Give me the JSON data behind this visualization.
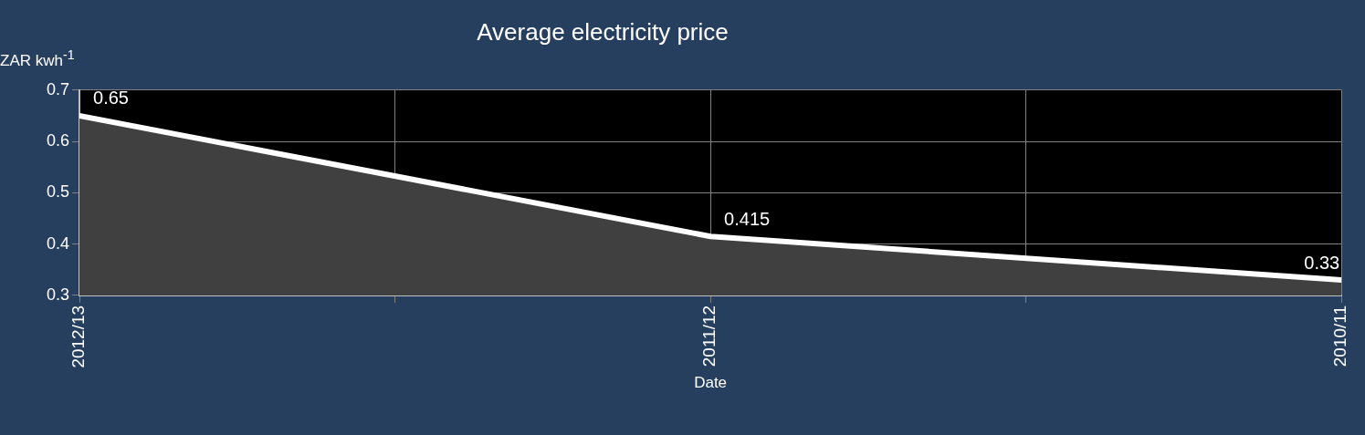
{
  "chart_data": {
    "type": "area",
    "title": "Average electricity price",
    "xlabel": "Date",
    "ylabel": "ZAR kwh$^{-1}$",
    "categories": [
      "2012/13",
      "2011/12",
      "2010/11"
    ],
    "series": [
      {
        "color": "#ffffff",
        "values": [
          0.65,
          0.415,
          0.33
        ]
      }
    ],
    "ylim": [
      0.3,
      0.7
    ],
    "yticks": [
      0.3,
      0.4,
      0.5,
      0.6,
      0.7
    ],
    "grid": true,
    "data_labels": true
  }
}
